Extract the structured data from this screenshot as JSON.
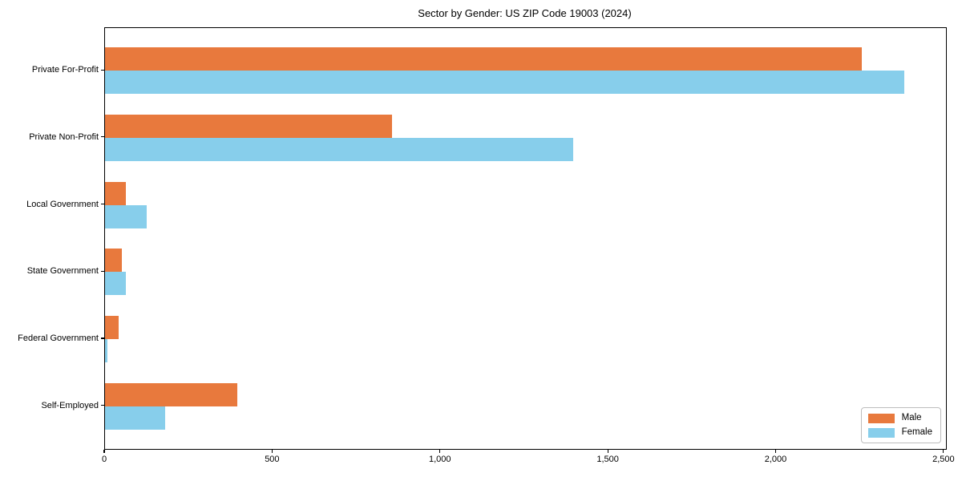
{
  "title": "Sector by Gender: US ZIP Code 19003 (2024)",
  "chart_data": {
    "type": "bar",
    "orientation": "horizontal",
    "title": "Sector by Gender: US ZIP Code 19003 (2024)",
    "categories": [
      "Private For-Profit",
      "Private Non-Profit",
      "Local Government",
      "State Government",
      "Federal Government",
      "Self-Employed"
    ],
    "series": [
      {
        "name": "Male",
        "color": "#E8793D",
        "values": [
          2255,
          855,
          63,
          50,
          40,
          395
        ]
      },
      {
        "name": "Female",
        "color": "#87CEEB",
        "values": [
          2380,
          1395,
          125,
          62,
          8,
          180
        ]
      }
    ],
    "xlabel": "",
    "ylabel": "",
    "xlim": [
      0,
      2505
    ],
    "xticks": [
      0,
      500,
      1000,
      1500,
      2000,
      2500
    ],
    "xtick_labels": [
      "0",
      "500",
      "1,000",
      "1,500",
      "2,000",
      "2,500"
    ],
    "legend_position": "lower right",
    "grid": false
  }
}
